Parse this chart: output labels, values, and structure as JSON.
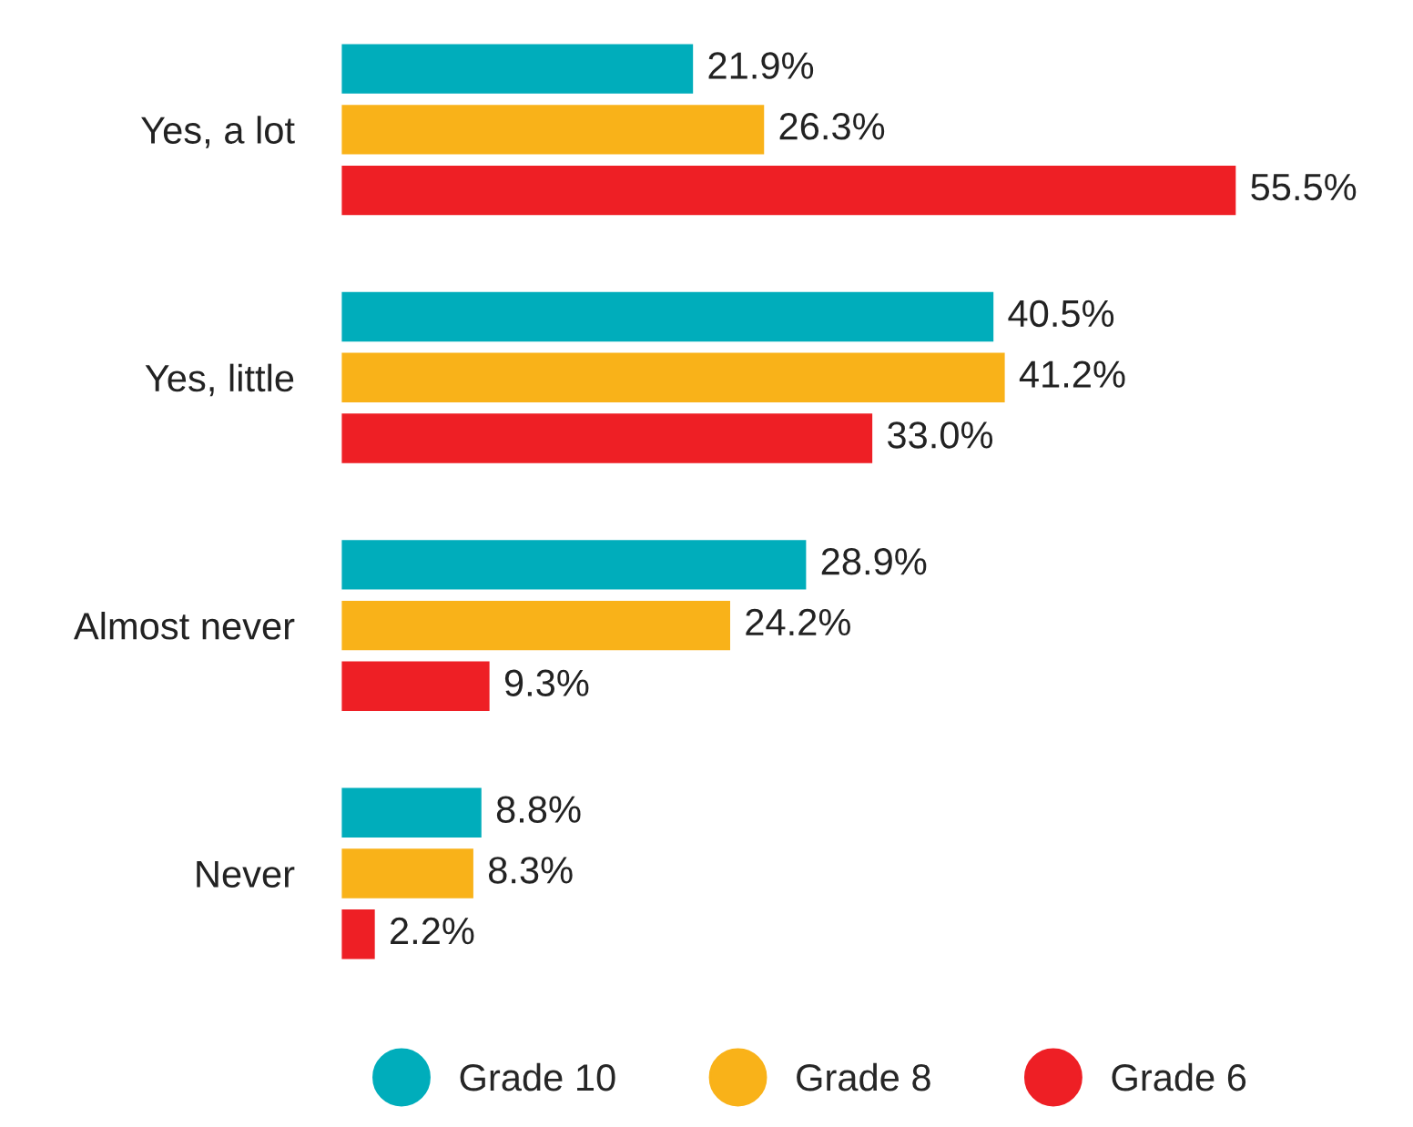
{
  "chart_data": {
    "type": "bar",
    "orientation": "horizontal",
    "categories": [
      "Yes, a lot",
      "Yes, little",
      "Almost never",
      "Never"
    ],
    "series": [
      {
        "name": "Grade 10",
        "color": "#00adbb",
        "values": [
          21.9,
          40.5,
          28.9,
          8.8
        ],
        "value_labels": [
          "21.9%",
          "40.5%",
          "28.9%",
          "8.8%"
        ]
      },
      {
        "name": "Grade 8",
        "color": "#f9b219",
        "values": [
          26.3,
          41.2,
          24.2,
          8.3
        ],
        "value_labels": [
          "26.3%",
          "41.2%",
          "24.2%",
          "8.3%"
        ]
      },
      {
        "name": "Grade 6",
        "color": "#ee1f25",
        "values": [
          55.5,
          33.0,
          9.3,
          2.2
        ],
        "value_labels": [
          "55.5%",
          "33.0%",
          "9.3%",
          "2.2%"
        ]
      }
    ],
    "legend": "bottom",
    "grid": false,
    "marker": "circle"
  }
}
